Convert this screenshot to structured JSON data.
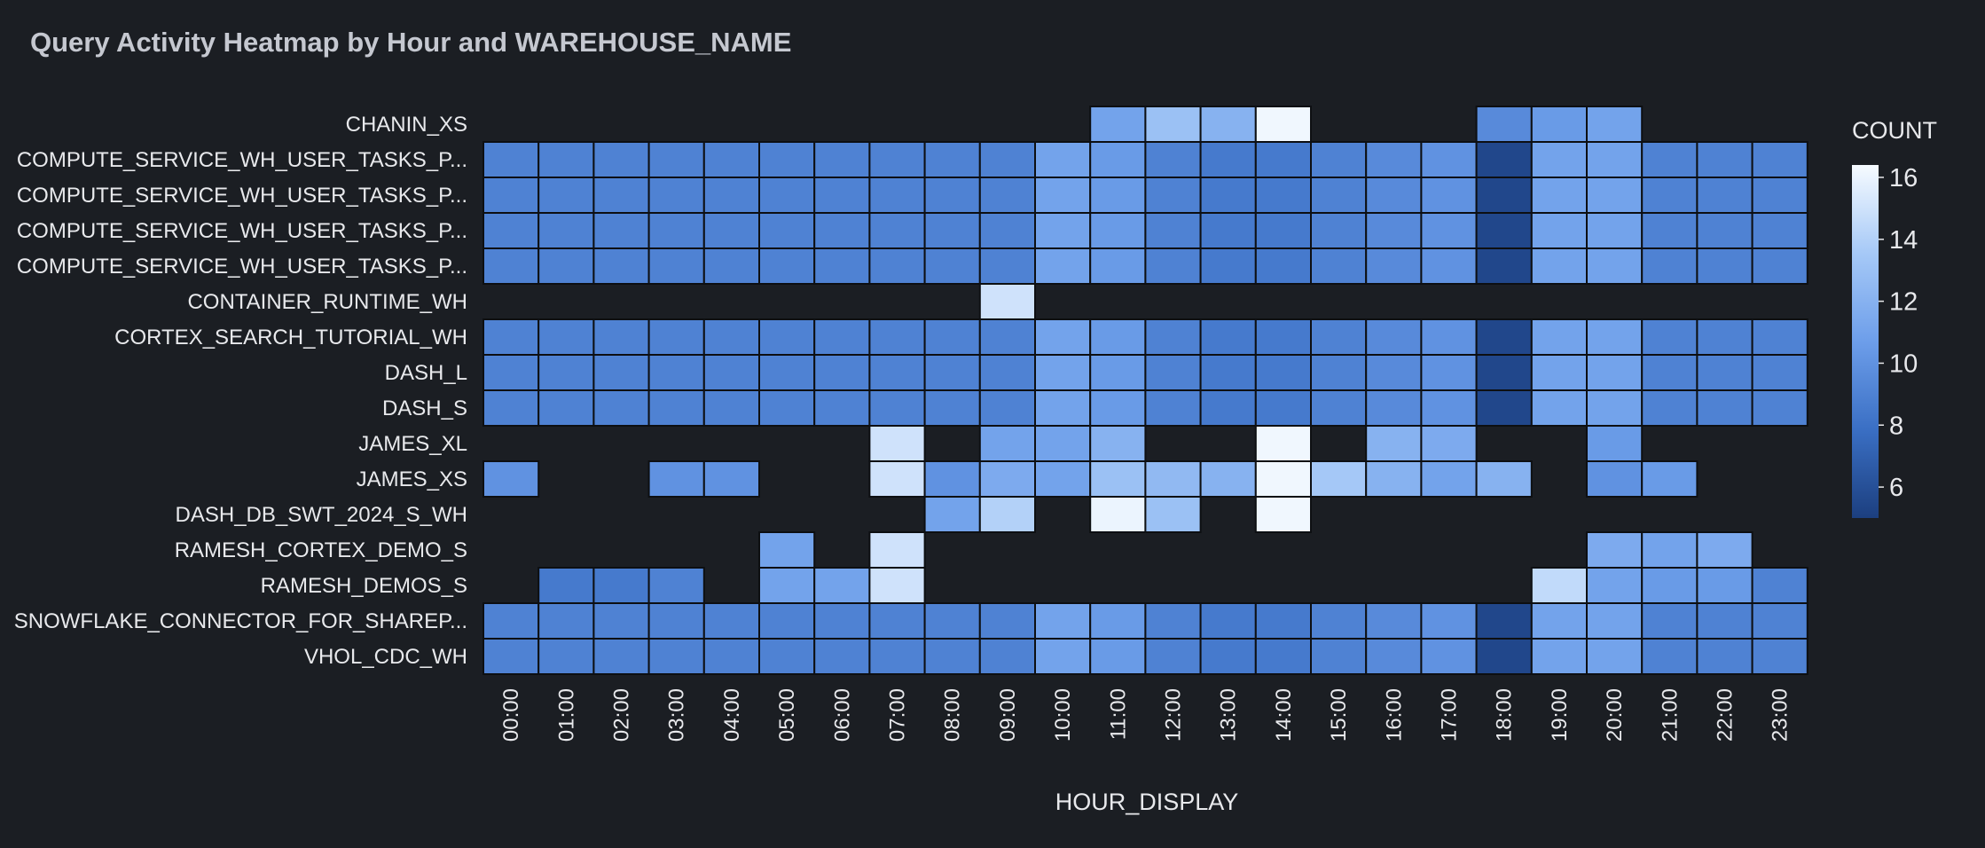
{
  "chart_data": {
    "type": "heatmap",
    "title": "Query Activity Heatmap by Hour and WAREHOUSE_NAME",
    "xlabel": "HOUR_DISPLAY",
    "ylabel": "WAREHOUSE_NAME",
    "legend_title": "COUNT",
    "legend_position": "right",
    "color_range": [
      5,
      16.4
    ],
    "legend_ticks": [
      6,
      8,
      10,
      12,
      14,
      16
    ],
    "x": [
      "00:00",
      "01:00",
      "02:00",
      "03:00",
      "04:00",
      "05:00",
      "06:00",
      "07:00",
      "08:00",
      "09:00",
      "10:00",
      "11:00",
      "12:00",
      "13:00",
      "14:00",
      "15:00",
      "16:00",
      "17:00",
      "18:00",
      "19:00",
      "20:00",
      "21:00",
      "22:00",
      "23:00"
    ],
    "y": [
      "CHANIN_XS",
      "COMPUTE_SERVICE_WH_USER_TASKS_P...",
      "COMPUTE_SERVICE_WH_USER_TASKS_P...",
      "COMPUTE_SERVICE_WH_USER_TASKS_P...",
      "COMPUTE_SERVICE_WH_USER_TASKS_P...",
      "CONTAINER_RUNTIME_WH",
      "CORTEX_SEARCH_TUTORIAL_WH",
      "DASH_L",
      "DASH_S",
      "JAMES_XL",
      "JAMES_XS",
      "DASH_DB_SWT_2024_S_WH",
      "RAMESH_CORTEX_DEMO_S",
      "RAMESH_DEMOS_S",
      "SNOWFLAKE_CONNECTOR_FOR_SHAREP...",
      "VHOL_CDC_WH"
    ],
    "values": [
      [
        null,
        null,
        null,
        null,
        null,
        null,
        null,
        null,
        null,
        null,
        null,
        11,
        13,
        12,
        16.2,
        null,
        null,
        null,
        9.5,
        10.5,
        11,
        null,
        null,
        null
      ],
      [
        9,
        9,
        9,
        9,
        9,
        9,
        9,
        9,
        9,
        9,
        11,
        10.5,
        9,
        8.5,
        8.5,
        9,
        9.5,
        10,
        5.5,
        11,
        11,
        9,
        9,
        9
      ],
      [
        9,
        9,
        9,
        9,
        9,
        9,
        9,
        9,
        9,
        9,
        11,
        10.5,
        9,
        8.5,
        8.5,
        9,
        9.5,
        10,
        5.5,
        11,
        11,
        9,
        9,
        9
      ],
      [
        9,
        9,
        9,
        9,
        9,
        9,
        9,
        9,
        9,
        9,
        11,
        10.5,
        9,
        8.5,
        8.5,
        9,
        9.5,
        10,
        5.5,
        11,
        11,
        9,
        9,
        9
      ],
      [
        9,
        9,
        9,
        9,
        9,
        9,
        9,
        9,
        9,
        9,
        11,
        10.5,
        9,
        8.5,
        8.5,
        9,
        9.5,
        10,
        5.5,
        11,
        11,
        9,
        9,
        9
      ],
      [
        null,
        null,
        null,
        null,
        null,
        null,
        null,
        null,
        null,
        15,
        null,
        null,
        null,
        null,
        null,
        null,
        null,
        null,
        null,
        null,
        null,
        null,
        null,
        null
      ],
      [
        9,
        9,
        9,
        9,
        9,
        9,
        9,
        9,
        9,
        9,
        11,
        10.5,
        9,
        8.5,
        8.5,
        9,
        9.5,
        10,
        5.5,
        11,
        11,
        9,
        9,
        9
      ],
      [
        9,
        9,
        9,
        9,
        9,
        9,
        9,
        9,
        9,
        9,
        11,
        10.5,
        9,
        8.5,
        8.5,
        9,
        9.5,
        10,
        5.5,
        11,
        11,
        9,
        9,
        9
      ],
      [
        9,
        9,
        9,
        9,
        9,
        9,
        9,
        9,
        9,
        9,
        11,
        10.5,
        9,
        8.5,
        8.5,
        9,
        9.5,
        10,
        5.5,
        11,
        11,
        9,
        9,
        9
      ],
      [
        null,
        null,
        null,
        null,
        null,
        null,
        null,
        15,
        null,
        11,
        11,
        12,
        null,
        null,
        16.2,
        null,
        12,
        11.5,
        null,
        null,
        10.5,
        null,
        null,
        null
      ],
      [
        10,
        null,
        null,
        10,
        10,
        null,
        null,
        15,
        10,
        11.5,
        11,
        13,
        12.5,
        12,
        16.2,
        13.5,
        12,
        11,
        12,
        null,
        10,
        10.5,
        null,
        null
      ],
      [
        null,
        null,
        null,
        null,
        null,
        null,
        null,
        null,
        11,
        14,
        null,
        16,
        13,
        null,
        16.2,
        null,
        null,
        null,
        null,
        null,
        null,
        null,
        null,
        null
      ],
      [
        null,
        null,
        null,
        null,
        null,
        11,
        null,
        15,
        null,
        null,
        null,
        null,
        null,
        null,
        null,
        null,
        null,
        null,
        null,
        null,
        11.5,
        11,
        11.5,
        null
      ],
      [
        null,
        8.5,
        8.5,
        9,
        null,
        11,
        11,
        15,
        null,
        null,
        null,
        null,
        null,
        null,
        null,
        null,
        null,
        null,
        null,
        14.5,
        11,
        10.5,
        10.5,
        9
      ],
      [
        9,
        9,
        9,
        9,
        9,
        9,
        9,
        9,
        9,
        9,
        11,
        10.5,
        9,
        8.5,
        8.5,
        9,
        9.5,
        10,
        5.5,
        11,
        11,
        9,
        9,
        9
      ],
      [
        9,
        9,
        9,
        9,
        9,
        9,
        9,
        9,
        9,
        9,
        11,
        10.5,
        9,
        8.5,
        8.5,
        9,
        9.5,
        10,
        5.5,
        11,
        11,
        9,
        9,
        9
      ]
    ]
  },
  "colors": {
    "scale": [
      "#1c3f7f",
      "#3a6fc4",
      "#6d9eea",
      "#a6c9f7",
      "#f6fbff"
    ],
    "empty": "#1b1e23",
    "cell_border": "#0d0f12"
  }
}
